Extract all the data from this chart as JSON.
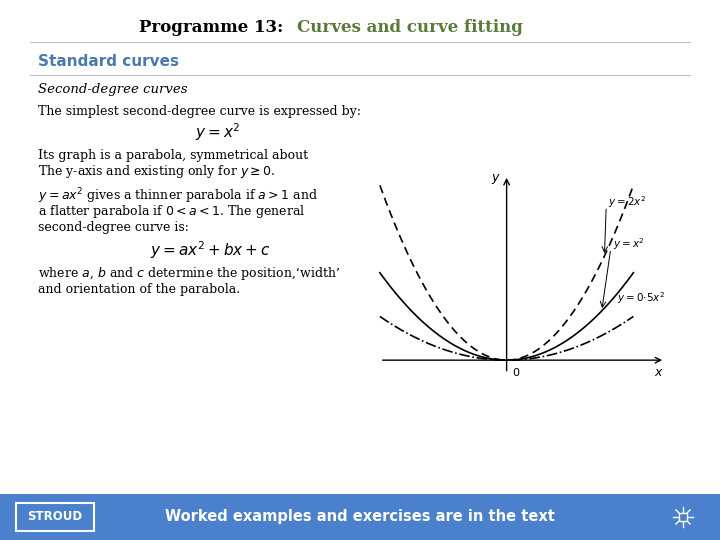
{
  "title_black": "Programme 13:  ",
  "title_green": "Curves and curve fitting",
  "title_fontsize": 12,
  "title_black_color": "#000000",
  "title_green_color": "#5a7a3a",
  "heading_color": "#4a7aad",
  "heading_text": "Standard curves",
  "subheading_text": "Second-degree curves",
  "body_color": "#000000",
  "background_color": "#ffffff",
  "footer_bg_color": "#4a80cc",
  "footer_text": "Worked examples and exercises are in the text",
  "footer_text_color": "#ffffff",
  "stroud_text": "STROUD",
  "line1": "The simplest second-degree curve is expressed by:",
  "eq1": "$y = x^2$",
  "line2a": "Its graph is a parabola, symmetrical about",
  "line2b": "The y-axis and existing only for $y \\geq 0$.",
  "line3a": "$y = ax^2$ gives a thinner parabola if $a > 1$ and",
  "line3b": "a flatter parabola if $0 < a < 1$. The general",
  "line3c": "second-degree curve is:",
  "eq2": "$y = ax^2 + bx + c$",
  "line4a": "where $a$, $b$ and $c$ determine the position,‘width’",
  "line4b": "and orientation of the parabola."
}
